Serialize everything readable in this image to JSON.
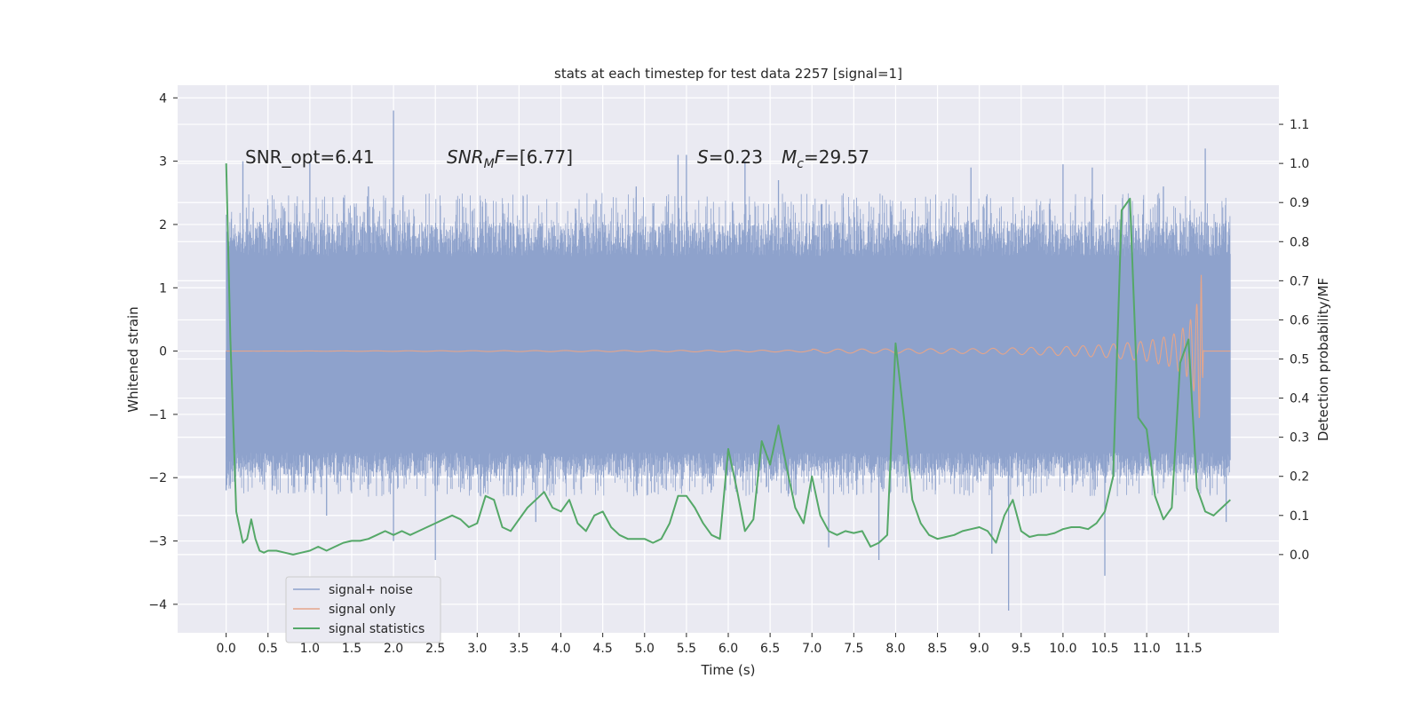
{
  "chart_data": {
    "type": "line",
    "title": "stats at each timestep for test data 2257 [signal=1]",
    "xlabel": "Time (s)",
    "ylabel": "Whitened strain",
    "ylabel_right": "Detection probability/MF",
    "xlim": [
      -0.58,
      12.58
    ],
    "ylim_left": [
      -4.45,
      4.2
    ],
    "ylim_right": [
      -0.2,
      1.2
    ],
    "x_ticks": [
      "0.0",
      "0.5",
      "1.0",
      "1.5",
      "2.0",
      "2.5",
      "3.0",
      "3.5",
      "4.0",
      "4.5",
      "5.0",
      "5.5",
      "6.0",
      "6.5",
      "7.0",
      "7.5",
      "8.0",
      "8.5",
      "9.0",
      "9.5",
      "10.0",
      "10.5",
      "11.0",
      "11.5"
    ],
    "y_ticks_left": [
      "4",
      "3",
      "2",
      "1",
      "0",
      "−1",
      "−2",
      "−3",
      "−4"
    ],
    "y_ticks_right": [
      "1.1",
      "1.0",
      "0.9",
      "0.8",
      "0.7",
      "0.6",
      "0.5",
      "0.4",
      "0.3",
      "0.2",
      "0.1",
      "0.0"
    ],
    "grid": true,
    "legend_position": "lower-left",
    "annotations": {
      "snr_opt": "SNR_opt=6.41",
      "snr_mf_var": "SNR",
      "snr_mf_sub": "M",
      "snr_mf_rest": "F",
      "snr_mf_value": "=[6.77]",
      "s_var": "S",
      "s_value": "=0.23",
      "mc_var": "M",
      "mc_sub": "c",
      "mc_value": "=29.57"
    },
    "series": [
      {
        "name": "signal+ noise",
        "color": "#8ea2cc",
        "axis": "left",
        "x_range": [
          0,
          12
        ],
        "core_band": [
          -1.6,
          1.5
        ],
        "typical_envelope": [
          -2.3,
          2.5
        ],
        "spikes": [
          {
            "x": 0.0,
            "y": -2.2
          },
          {
            "x": 0.2,
            "y": 3.0
          },
          {
            "x": 0.55,
            "y": -2.2
          },
          {
            "x": 1.0,
            "y": 3.0
          },
          {
            "x": 1.2,
            "y": -2.6
          },
          {
            "x": 1.7,
            "y": 2.6
          },
          {
            "x": 2.0,
            "y": 3.8
          },
          {
            "x": 2.0,
            "y": -3.0
          },
          {
            "x": 2.5,
            "y": -3.3
          },
          {
            "x": 3.7,
            "y": -2.7
          },
          {
            "x": 4.9,
            "y": 2.6
          },
          {
            "x": 5.4,
            "y": 3.1
          },
          {
            "x": 5.5,
            "y": 3.1
          },
          {
            "x": 6.2,
            "y": 3.0
          },
          {
            "x": 6.6,
            "y": 2.7
          },
          {
            "x": 7.2,
            "y": -3.1
          },
          {
            "x": 7.8,
            "y": -3.3
          },
          {
            "x": 8.9,
            "y": 2.9
          },
          {
            "x": 9.15,
            "y": -3.2
          },
          {
            "x": 9.35,
            "y": -4.1
          },
          {
            "x": 10.0,
            "y": 2.95
          },
          {
            "x": 10.35,
            "y": 2.9
          },
          {
            "x": 10.5,
            "y": -3.55
          },
          {
            "x": 11.2,
            "y": 2.6
          },
          {
            "x": 11.7,
            "y": 3.2
          },
          {
            "x": 11.95,
            "y": -2.7
          }
        ]
      },
      {
        "name": "signal only",
        "color": "#e5a58a",
        "axis": "left",
        "x_range": [
          0,
          12
        ],
        "chirp_envelope": [
          {
            "x": 7.0,
            "a": 0.03
          },
          {
            "x": 9.0,
            "a": 0.04
          },
          {
            "x": 10.0,
            "a": 0.07
          },
          {
            "x": 10.5,
            "a": 0.1
          },
          {
            "x": 11.0,
            "a": 0.16
          },
          {
            "x": 11.3,
            "a": 0.25
          },
          {
            "x": 11.5,
            "a": 0.42
          },
          {
            "x": 11.6,
            "a": 0.75
          },
          {
            "x": 11.65,
            "a": 1.3
          },
          {
            "x": 11.68,
            "a": 0.0
          }
        ]
      },
      {
        "name": "signal statistics",
        "color": "#55a868",
        "axis": "right",
        "x": [
          0.0,
          0.05,
          0.12,
          0.2,
          0.25,
          0.3,
          0.35,
          0.4,
          0.45,
          0.5,
          0.6,
          0.7,
          0.8,
          0.9,
          1.0,
          1.1,
          1.2,
          1.3,
          1.4,
          1.5,
          1.6,
          1.7,
          1.8,
          1.9,
          2.0,
          2.1,
          2.2,
          2.3,
          2.4,
          2.5,
          2.6,
          2.7,
          2.8,
          2.9,
          3.0,
          3.1,
          3.2,
          3.3,
          3.4,
          3.5,
          3.6,
          3.7,
          3.8,
          3.9,
          4.0,
          4.1,
          4.2,
          4.3,
          4.4,
          4.5,
          4.6,
          4.7,
          4.8,
          4.9,
          5.0,
          5.1,
          5.2,
          5.3,
          5.4,
          5.5,
          5.6,
          5.7,
          5.8,
          5.9,
          6.0,
          6.1,
          6.2,
          6.3,
          6.4,
          6.5,
          6.6,
          6.7,
          6.8,
          6.9,
          7.0,
          7.1,
          7.2,
          7.3,
          7.4,
          7.5,
          7.6,
          7.7,
          7.8,
          7.9,
          8.0,
          8.1,
          8.2,
          8.3,
          8.4,
          8.5,
          8.6,
          8.7,
          8.8,
          8.9,
          9.0,
          9.1,
          9.2,
          9.3,
          9.4,
          9.5,
          9.6,
          9.7,
          9.8,
          9.9,
          10.0,
          10.1,
          10.2,
          10.3,
          10.4,
          10.5,
          10.6,
          10.7,
          10.8,
          10.9,
          11.0,
          11.1,
          11.2,
          11.3,
          11.4,
          11.5,
          11.6,
          11.7,
          11.8,
          11.9,
          12.0
        ],
        "values": [
          1.0,
          0.55,
          0.11,
          0.03,
          0.04,
          0.09,
          0.04,
          0.01,
          0.005,
          0.01,
          0.01,
          0.005,
          0.0,
          0.005,
          0.01,
          0.02,
          0.01,
          0.02,
          0.03,
          0.035,
          0.035,
          0.04,
          0.05,
          0.06,
          0.05,
          0.06,
          0.05,
          0.06,
          0.07,
          0.08,
          0.09,
          0.1,
          0.09,
          0.07,
          0.08,
          0.15,
          0.14,
          0.07,
          0.06,
          0.09,
          0.12,
          0.14,
          0.16,
          0.12,
          0.11,
          0.14,
          0.08,
          0.06,
          0.1,
          0.11,
          0.07,
          0.05,
          0.04,
          0.04,
          0.04,
          0.03,
          0.04,
          0.08,
          0.15,
          0.15,
          0.12,
          0.08,
          0.05,
          0.04,
          0.27,
          0.17,
          0.06,
          0.09,
          0.29,
          0.23,
          0.33,
          0.22,
          0.12,
          0.08,
          0.2,
          0.1,
          0.06,
          0.05,
          0.06,
          0.055,
          0.06,
          0.02,
          0.03,
          0.05,
          0.54,
          0.35,
          0.14,
          0.08,
          0.05,
          0.04,
          0.045,
          0.05,
          0.06,
          0.065,
          0.07,
          0.06,
          0.03,
          0.1,
          0.14,
          0.06,
          0.045,
          0.05,
          0.05,
          0.055,
          0.065,
          0.07,
          0.07,
          0.065,
          0.08,
          0.11,
          0.2,
          0.88,
          0.91,
          0.35,
          0.32,
          0.15,
          0.09,
          0.12,
          0.49,
          0.55,
          0.17,
          0.11,
          0.1,
          0.12,
          0.14
        ]
      }
    ]
  }
}
